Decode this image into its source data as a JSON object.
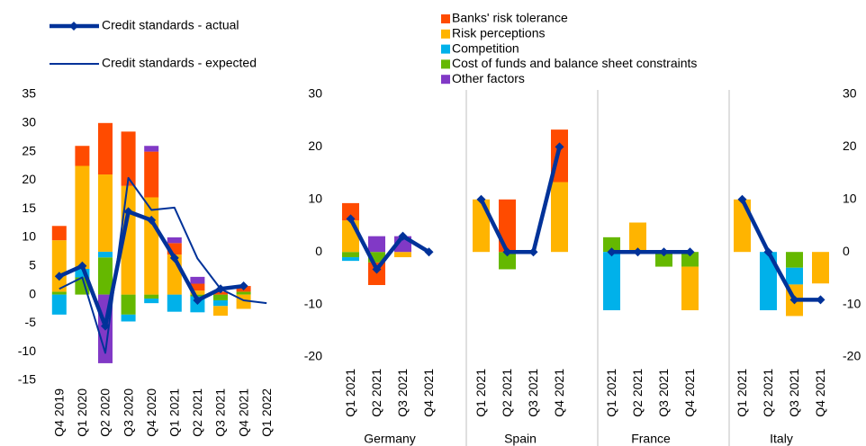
{
  "chart_data": [
    {
      "type": "bar",
      "categories": [
        "Q4 2019",
        "Q1 2020",
        "Q2 2020",
        "Q3 2020",
        "Q4 2020",
        "Q1 2021",
        "Q2 2021",
        "Q3 2021",
        "Q4 2021",
        "Q1 2022"
      ],
      "ylim": [
        -15,
        35
      ],
      "yticks": [
        -15,
        -10,
        -5,
        0,
        5,
        10,
        15,
        20,
        25,
        30,
        35
      ],
      "series": [
        {
          "name": "Banks' risk tolerance",
          "type": "bar",
          "color": "#ff4b00",
          "values": [
            2.5,
            3.5,
            9,
            9.5,
            8,
            2,
            1.2,
            0.5,
            1,
            null
          ]
        },
        {
          "name": "Risk perceptions",
          "type": "bar",
          "color": "#ffb400",
          "values": [
            9,
            18,
            13.5,
            19,
            17,
            7,
            0.7,
            -1.7,
            -2.5,
            null
          ]
        },
        {
          "name": "Competition",
          "type": "bar",
          "color": "#00b1ea",
          "values": [
            -3.5,
            1.5,
            1,
            -1.2,
            -0.8,
            -3,
            -2.8,
            -1,
            0,
            null
          ]
        },
        {
          "name": "Cost of funds and balance sheet constraints",
          "type": "bar",
          "color": "#65b800",
          "values": [
            0.5,
            3,
            6.5,
            -3.5,
            -0.7,
            0,
            -0.3,
            -1,
            0.5,
            null
          ]
        },
        {
          "name": "Other factors",
          "type": "bar",
          "color": "#8139c6",
          "values": [
            0,
            0,
            -12,
            0,
            1,
            1,
            1.2,
            0,
            0,
            null
          ]
        },
        {
          "name": "Credit standards - actual",
          "type": "line",
          "color": "#003299",
          "values": [
            3.2,
            5,
            -5.5,
            14.5,
            13,
            6.4,
            -1,
            1,
            1.5,
            null
          ]
        },
        {
          "name": "Credit standards - expected",
          "type": "line",
          "color": "#003299",
          "values": [
            1,
            3,
            -10.2,
            20.4,
            14.8,
            15.2,
            6.3,
            1,
            -1,
            -1.5
          ]
        }
      ]
    },
    {
      "type": "bar",
      "groups": [
        "Germany",
        "Spain",
        "France",
        "Italy"
      ],
      "categories": [
        "Q1 2021",
        "Q2 2021",
        "Q3 2021",
        "Q4 2021",
        "Q1 2021",
        "Q2 2021",
        "Q3 2021",
        "Q4 2021",
        "Q1 2021",
        "Q2 2021",
        "Q3 2021",
        "Q4 2021",
        "Q1 2021",
        "Q2 2021",
        "Q3 2021",
        "Q4 2021"
      ],
      "ylim": [
        -20,
        30
      ],
      "yticks": [
        -20,
        -10,
        0,
        10,
        20,
        30
      ],
      "y2lim": [
        -20,
        30
      ],
      "y2ticks": [
        -20,
        -10,
        0,
        10,
        20,
        30
      ],
      "series": [
        {
          "type": "bar",
          "color": "#ff4b00",
          "values": [
            3.3,
            -4.3,
            0,
            0,
            0,
            10,
            0,
            10,
            0,
            0,
            0,
            0,
            0,
            0,
            0,
            0
          ]
        },
        {
          "type": "bar",
          "color": "#ffb400",
          "values": [
            6,
            0,
            -1,
            0,
            10,
            0,
            0,
            13.3,
            0,
            5.6,
            0,
            -8.3,
            10,
            0,
            -6,
            -6
          ]
        },
        {
          "type": "bar",
          "color": "#00b1ea",
          "values": [
            -0.7,
            0,
            0,
            0,
            0,
            0,
            0,
            0,
            -11.1,
            0,
            0,
            0,
            0,
            -11.1,
            -3.2,
            0
          ]
        },
        {
          "type": "bar",
          "color": "#65b800",
          "values": [
            -1,
            -2,
            0,
            0,
            0,
            -3.3,
            0,
            0,
            2.8,
            0,
            -2.8,
            -2.8,
            0,
            0,
            -3,
            0
          ]
        },
        {
          "type": "bar",
          "color": "#8139c6",
          "values": [
            0,
            3,
            3,
            0,
            0,
            0,
            0,
            0,
            0,
            0,
            0,
            0,
            0,
            0,
            0,
            0
          ]
        },
        {
          "type": "line",
          "color": "#003299",
          "values": [
            6.3,
            -3.3,
            3,
            0,
            10,
            0,
            0,
            20,
            0,
            0,
            0,
            0,
            10,
            0,
            -9.1,
            -9.1
          ]
        }
      ]
    }
  ]
}
